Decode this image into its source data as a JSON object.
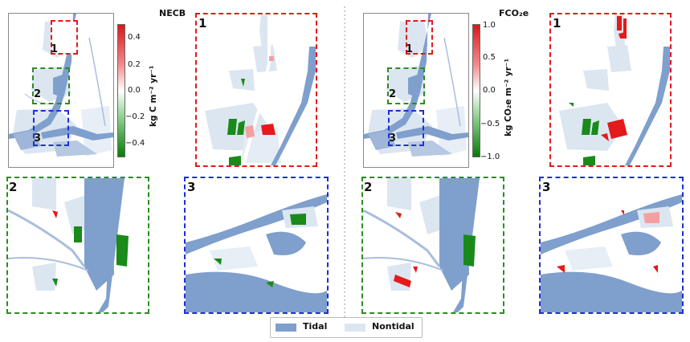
{
  "panels": [
    {
      "title": "NECB",
      "colorbar": {
        "label": "kg C m⁻² yr⁻¹",
        "ticks": [
          "0.4",
          "0.2",
          "0.0",
          "−0.2",
          "−0.4"
        ],
        "min": -0.5,
        "max": 0.5
      },
      "insets": [
        "1",
        "2",
        "3"
      ],
      "overview_labels": [
        "1",
        "2",
        "3"
      ]
    },
    {
      "title": "FCO₂e",
      "colorbar": {
        "label": "kg CO₂e m⁻² yr⁻¹",
        "ticks": [
          "1.0",
          "0.5",
          "0.0",
          "−0.5",
          "−1.0"
        ],
        "min": -1.0,
        "max": 1.0
      },
      "insets": [
        "1",
        "2",
        "3"
      ],
      "overview_labels": [
        "1",
        "2",
        "3"
      ]
    }
  ],
  "legend": {
    "items": [
      {
        "label": "Tidal",
        "color": "#7f9fcc"
      },
      {
        "label": "Nontidal",
        "color": "#dbe6f1"
      }
    ]
  },
  "colors": {
    "tidal": "#7f9fcc",
    "nontidal": "#dbe6f1",
    "inset1_border": "#e41a1c",
    "inset2_border": "#2e8b22",
    "inset3_border": "#1f2fd6",
    "positive": "#e41a1c",
    "negative": "#1a8a1a"
  }
}
